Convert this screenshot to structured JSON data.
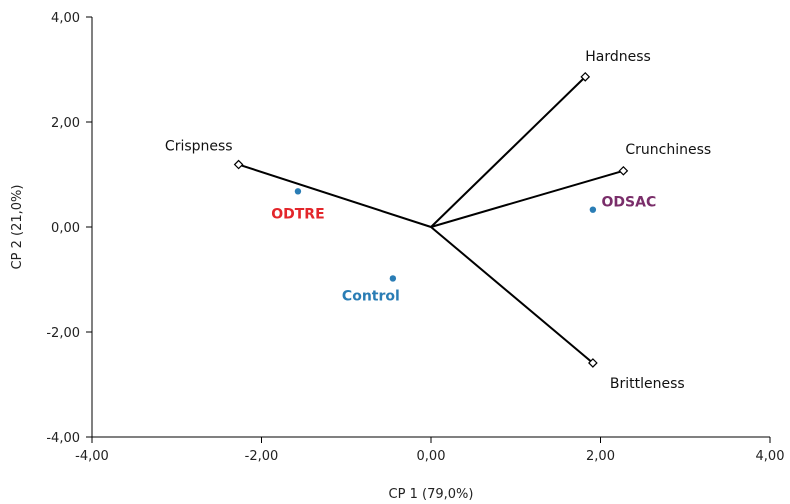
{
  "chart_data": {
    "type": "scatter",
    "xlabel": "CP 1 (79,0%)",
    "ylabel": "CP 2 (21,0%)",
    "xlim": [
      -4,
      4
    ],
    "ylim": [
      -4,
      4
    ],
    "xticks": [
      "-4,00",
      "-2,00",
      "0,00",
      "2,00",
      "4,00"
    ],
    "yticks": [
      "-4,00",
      "-2,00",
      "0,00",
      "2,00",
      "4,00"
    ],
    "variables": [
      {
        "name": "Crispness",
        "x": -2.27,
        "y": 1.19
      },
      {
        "name": "Hardness",
        "x": 1.82,
        "y": 2.86
      },
      {
        "name": "Crunchiness",
        "x": 2.27,
        "y": 1.07
      },
      {
        "name": "Brittleness",
        "x": 1.91,
        "y": -2.59
      }
    ],
    "observations": [
      {
        "name": "ODTRE",
        "x": -1.57,
        "y": 0.68,
        "label_color": "#e3262b"
      },
      {
        "name": "Control",
        "x": -0.45,
        "y": -0.98,
        "label_color": "#2a7db5"
      },
      {
        "name": "ODSAC",
        "x": 1.91,
        "y": 0.33,
        "label_color": "#7a2e6a"
      }
    ],
    "point_color": "#2a7db5",
    "vector_color": "#000000",
    "grid": false
  }
}
